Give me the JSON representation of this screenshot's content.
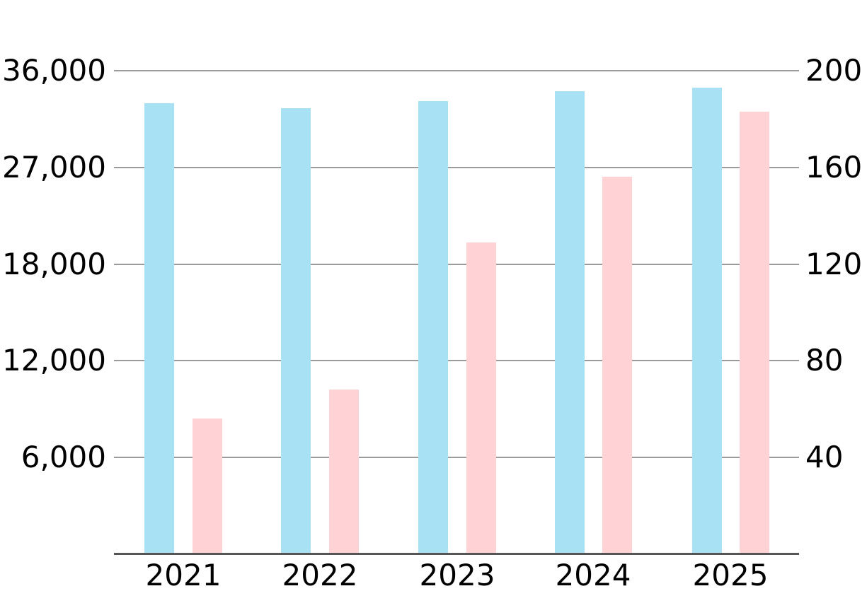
{
  "chart_data": {
    "type": "bar",
    "title": "",
    "legend": "none",
    "grid": true,
    "categories": [
      "2021",
      "2022",
      "2023",
      "2024",
      "2025"
    ],
    "series": [
      {
        "name": "blue-series",
        "axis": "left",
        "color": "#a8e1f4",
        "values": [
          33000,
          32500,
          33200,
          34100,
          34400
        ]
      },
      {
        "name": "pink-series",
        "axis": "right",
        "color": "#ffd2d6",
        "values": [
          56,
          68,
          129,
          156,
          183
        ]
      }
    ],
    "left_axis": {
      "tick_labels": [
        "36,000",
        "27,000",
        "18,000",
        "12,000",
        "6,000"
      ],
      "tick_values": [
        36000,
        27000,
        18000,
        12000,
        6000
      ],
      "min": 0
    },
    "right_axis": {
      "tick_labels": [
        "200",
        "160",
        "120",
        "80",
        "40"
      ],
      "tick_values": [
        200,
        160,
        120,
        80,
        40
      ],
      "min": 0
    },
    "colors": {
      "gridline": "#9b9b9b",
      "axis_line": "#555555",
      "text": "#000000"
    }
  }
}
